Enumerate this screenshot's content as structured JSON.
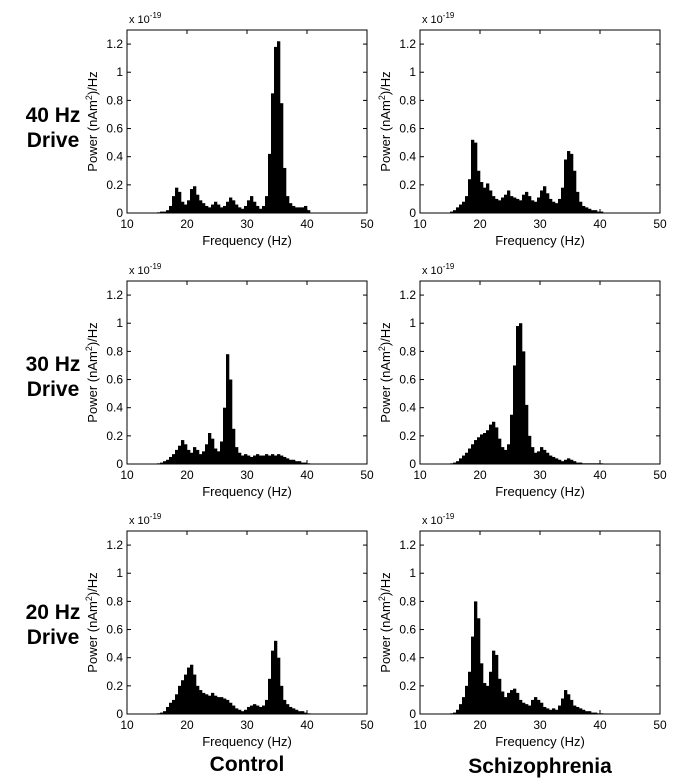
{
  "figure": {
    "row_labels": [
      "40 Hz\nDrive",
      "30 Hz\nDrive",
      "20 Hz\nDrive"
    ],
    "col_labels": [
      "Control",
      "Schizophrenia"
    ]
  },
  "colors": {
    "bar": "#000000",
    "axis": "#000000",
    "background": "#ffffff"
  },
  "chart_data": [
    {
      "type": "bar",
      "panel": "40 Hz Drive - Control",
      "xlabel": "Frequency (Hz)",
      "ylabel_pre": "Power (nAm",
      "ylabel_sup": "2",
      "ylabel_post": ")/Hz",
      "exponent_label": "x 10",
      "exponent_sup": "-19",
      "xlim": [
        10,
        50
      ],
      "ylim": [
        0,
        1.3
      ],
      "xticks": [
        10,
        20,
        30,
        40,
        50
      ],
      "yticks": [
        0,
        0.2,
        0.4,
        0.6,
        0.8,
        1,
        1.2
      ],
      "ytick_labels": [
        "0",
        "0.2",
        "0.4",
        "0.6",
        "0.8",
        "1",
        "1.2"
      ],
      "x_start": 15,
      "bin_width": 0.5,
      "values": [
        0.005,
        0.01,
        0.01,
        0.02,
        0.05,
        0.12,
        0.18,
        0.15,
        0.08,
        0.06,
        0.09,
        0.17,
        0.19,
        0.13,
        0.09,
        0.07,
        0.05,
        0.04,
        0.06,
        0.08,
        0.06,
        0.04,
        0.05,
        0.08,
        0.11,
        0.09,
        0.06,
        0.04,
        0.03,
        0.05,
        0.09,
        0.12,
        0.08,
        0.05,
        0.03,
        0.05,
        0.12,
        0.42,
        0.85,
        1.18,
        1.22,
        0.78,
        0.32,
        0.12,
        0.07,
        0.05,
        0.04,
        0.04,
        0.04,
        0.05,
        0.02
      ]
    },
    {
      "type": "bar",
      "panel": "40 Hz Drive - Schizophrenia",
      "xlabel": "Frequency (Hz)",
      "ylabel_pre": "Power (nAm",
      "ylabel_sup": "2",
      "ylabel_post": ")/Hz",
      "exponent_label": "x 10",
      "exponent_sup": "-19",
      "xlim": [
        10,
        50
      ],
      "ylim": [
        0,
        1.3
      ],
      "xticks": [
        10,
        20,
        30,
        40,
        50
      ],
      "yticks": [
        0,
        0.2,
        0.4,
        0.6,
        0.8,
        1,
        1.2
      ],
      "ytick_labels": [
        "0",
        "0.2",
        "0.4",
        "0.6",
        "0.8",
        "1",
        "1.2"
      ],
      "x_start": 15,
      "bin_width": 0.5,
      "values": [
        0.01,
        0.02,
        0.04,
        0.06,
        0.08,
        0.12,
        0.24,
        0.52,
        0.5,
        0.3,
        0.22,
        0.18,
        0.21,
        0.16,
        0.12,
        0.1,
        0.09,
        0.11,
        0.13,
        0.16,
        0.12,
        0.11,
        0.1,
        0.09,
        0.13,
        0.15,
        0.12,
        0.09,
        0.08,
        0.11,
        0.16,
        0.19,
        0.14,
        0.1,
        0.08,
        0.07,
        0.1,
        0.18,
        0.38,
        0.44,
        0.42,
        0.3,
        0.15,
        0.08,
        0.05,
        0.04,
        0.03,
        0.02,
        0.02,
        0.01,
        0.01
      ]
    },
    {
      "type": "bar",
      "panel": "30 Hz Drive - Control",
      "xlabel": "Frequency (Hz)",
      "ylabel_pre": "Power (nAm",
      "ylabel_sup": "2",
      "ylabel_post": ")/Hz",
      "exponent_label": "x 10",
      "exponent_sup": "-19",
      "xlim": [
        10,
        50
      ],
      "ylim": [
        0,
        1.3
      ],
      "xticks": [
        10,
        20,
        30,
        40,
        50
      ],
      "yticks": [
        0,
        0.2,
        0.4,
        0.6,
        0.8,
        1,
        1.2
      ],
      "ytick_labels": [
        "0",
        "0.2",
        "0.4",
        "0.6",
        "0.8",
        "1",
        "1.2"
      ],
      "x_start": 15,
      "bin_width": 0.5,
      "values": [
        0.005,
        0.01,
        0.02,
        0.03,
        0.05,
        0.07,
        0.1,
        0.13,
        0.17,
        0.14,
        0.1,
        0.08,
        0.12,
        0.1,
        0.07,
        0.09,
        0.14,
        0.22,
        0.18,
        0.11,
        0.09,
        0.16,
        0.4,
        0.78,
        0.6,
        0.25,
        0.12,
        0.08,
        0.06,
        0.07,
        0.06,
        0.05,
        0.06,
        0.07,
        0.06,
        0.06,
        0.07,
        0.06,
        0.07,
        0.06,
        0.07,
        0.06,
        0.05,
        0.04,
        0.03,
        0.03,
        0.02,
        0.02,
        0.01,
        0.01,
        0.005
      ]
    },
    {
      "type": "bar",
      "panel": "30 Hz Drive - Schizophrenia",
      "xlabel": "Frequency (Hz)",
      "ylabel_pre": "Power (nAm",
      "ylabel_sup": "2",
      "ylabel_post": ")/Hz",
      "exponent_label": "x 10",
      "exponent_sup": "-19",
      "xlim": [
        10,
        50
      ],
      "ylim": [
        0,
        1.3
      ],
      "xticks": [
        10,
        20,
        30,
        40,
        50
      ],
      "yticks": [
        0,
        0.2,
        0.4,
        0.6,
        0.8,
        1,
        1.2
      ],
      "ytick_labels": [
        "0",
        "0.2",
        "0.4",
        "0.6",
        "0.8",
        "1",
        "1.2"
      ],
      "x_start": 15,
      "bin_width": 0.5,
      "values": [
        0.005,
        0.01,
        0.02,
        0.04,
        0.06,
        0.08,
        0.11,
        0.14,
        0.17,
        0.19,
        0.21,
        0.22,
        0.24,
        0.28,
        0.3,
        0.26,
        0.18,
        0.12,
        0.1,
        0.14,
        0.35,
        0.7,
        0.98,
        1.0,
        0.8,
        0.42,
        0.2,
        0.12,
        0.08,
        0.09,
        0.12,
        0.1,
        0.08,
        0.06,
        0.05,
        0.04,
        0.03,
        0.02,
        0.03,
        0.04,
        0.03,
        0.02,
        0.01,
        0.01,
        0.005,
        0.005,
        0.005,
        0.005,
        0.005,
        0.005,
        0.005
      ]
    },
    {
      "type": "bar",
      "panel": "20 Hz Drive - Control",
      "xlabel": "Frequency (Hz)",
      "ylabel_pre": "Power (nAm",
      "ylabel_sup": "2",
      "ylabel_post": ")/Hz",
      "exponent_label": "x 10",
      "exponent_sup": "-19",
      "xlim": [
        10,
        50
      ],
      "ylim": [
        0,
        1.3
      ],
      "xticks": [
        10,
        20,
        30,
        40,
        50
      ],
      "yticks": [
        0,
        0.2,
        0.4,
        0.6,
        0.8,
        1,
        1.2
      ],
      "ytick_labels": [
        "0",
        "0.2",
        "0.4",
        "0.6",
        "0.8",
        "1",
        "1.2"
      ],
      "x_start": 15,
      "bin_width": 0.5,
      "values": [
        0.005,
        0.01,
        0.02,
        0.05,
        0.08,
        0.1,
        0.14,
        0.2,
        0.24,
        0.28,
        0.33,
        0.35,
        0.28,
        0.2,
        0.17,
        0.15,
        0.14,
        0.13,
        0.15,
        0.13,
        0.12,
        0.12,
        0.11,
        0.1,
        0.08,
        0.06,
        0.04,
        0.03,
        0.02,
        0.03,
        0.05,
        0.06,
        0.07,
        0.06,
        0.05,
        0.06,
        0.1,
        0.25,
        0.45,
        0.52,
        0.4,
        0.2,
        0.1,
        0.07,
        0.05,
        0.04,
        0.03,
        0.02,
        0.02,
        0.01,
        0.005
      ]
    },
    {
      "type": "bar",
      "panel": "20 Hz Drive - Schizophrenia",
      "xlabel": "Frequency (Hz)",
      "ylabel_pre": "Power (nAm",
      "ylabel_sup": "2",
      "ylabel_post": ")/Hz",
      "exponent_label": "x 10",
      "exponent_sup": "-19",
      "xlim": [
        10,
        50
      ],
      "ylim": [
        0,
        1.3
      ],
      "xticks": [
        10,
        20,
        30,
        40,
        50
      ],
      "yticks": [
        0,
        0.2,
        0.4,
        0.6,
        0.8,
        1,
        1.2
      ],
      "ytick_labels": [
        "0",
        "0.2",
        "0.4",
        "0.6",
        "0.8",
        "1",
        "1.2"
      ],
      "x_start": 15,
      "bin_width": 0.5,
      "values": [
        0.005,
        0.01,
        0.03,
        0.07,
        0.12,
        0.2,
        0.3,
        0.55,
        0.8,
        0.68,
        0.36,
        0.22,
        0.2,
        0.3,
        0.45,
        0.42,
        0.25,
        0.16,
        0.12,
        0.15,
        0.17,
        0.18,
        0.15,
        0.1,
        0.08,
        0.07,
        0.06,
        0.1,
        0.12,
        0.1,
        0.08,
        0.05,
        0.04,
        0.03,
        0.04,
        0.03,
        0.06,
        0.11,
        0.17,
        0.14,
        0.1,
        0.06,
        0.05,
        0.04,
        0.03,
        0.02,
        0.02,
        0.01,
        0.01,
        0.005,
        0.005
      ]
    }
  ]
}
